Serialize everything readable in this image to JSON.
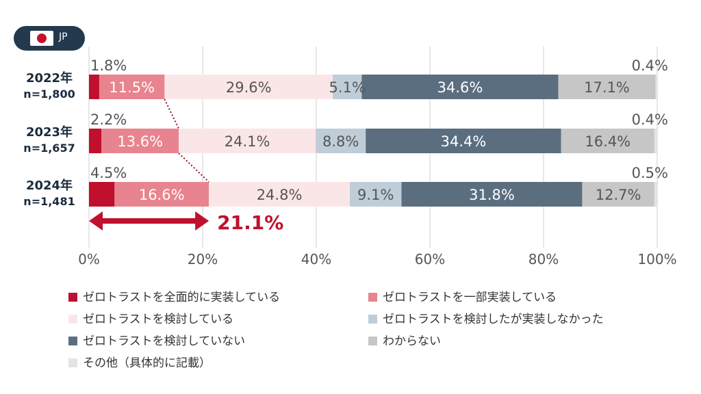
{
  "badge": {
    "country_code": "JP",
    "flag_icon": "japan-flag-icon"
  },
  "colors": {
    "full": "#c0102e",
    "partial": "#e8848f",
    "considering": "#fbe6e7",
    "considered_not": "#bfcdd8",
    "not_considering": "#5b6e80",
    "unknown": "#c6c6c6",
    "other": "#e3e3e3",
    "arrow": "#c0102e"
  },
  "chart_data": {
    "type": "bar",
    "orientation": "horizontal",
    "stacked": true,
    "categories": [
      {
        "year": "2022年",
        "n": "n=1,800"
      },
      {
        "year": "2023年",
        "n": "n=1,657"
      },
      {
        "year": "2024年",
        "n": "n=1,481"
      }
    ],
    "series": [
      {
        "key": "full",
        "name": "ゼロトラストを全面的に実装している",
        "values": [
          1.8,
          2.2,
          4.5
        ],
        "labels": [
          "1.8%",
          "2.2%",
          "4.5%"
        ]
      },
      {
        "key": "partial",
        "name": "ゼロトラストを一部実装している",
        "values": [
          11.5,
          13.6,
          16.6
        ],
        "labels": [
          "11.5%",
          "13.6%",
          "16.6%"
        ]
      },
      {
        "key": "considering",
        "name": "ゼロトラストを検討している",
        "values": [
          29.6,
          24.1,
          24.8
        ],
        "labels": [
          "29.6%",
          "24.1%",
          "24.8%"
        ]
      },
      {
        "key": "considered_not",
        "name": "ゼロトラストを検討したが実装しなかった",
        "values": [
          5.1,
          8.8,
          9.1
        ],
        "labels": [
          "5.1%",
          "8.8%",
          "9.1%"
        ]
      },
      {
        "key": "not_considering",
        "name": "ゼロトラストを検討していない",
        "values": [
          34.6,
          34.4,
          31.8
        ],
        "labels": [
          "34.6%",
          "34.4%",
          "31.8%"
        ]
      },
      {
        "key": "unknown",
        "name": "わからない",
        "values": [
          17.1,
          16.4,
          12.7
        ],
        "labels": [
          "17.1%",
          "16.4%",
          "12.7%"
        ]
      },
      {
        "key": "other",
        "name": "その他（具体的に記載）",
        "values": [
          0.4,
          0.4,
          0.5
        ],
        "labels": [
          "0.4%",
          "0.4%",
          "0.5%"
        ]
      }
    ],
    "xlim": [
      0,
      100
    ],
    "xticks": [
      0,
      20,
      40,
      60,
      80,
      100
    ],
    "xtick_labels": [
      "0%",
      "20%",
      "40%",
      "60%",
      "80%",
      "100%"
    ],
    "grid": true,
    "legend_position": "bottom",
    "annotation": {
      "label": "21.1%",
      "value": 21.1,
      "row": "2024年"
    }
  }
}
